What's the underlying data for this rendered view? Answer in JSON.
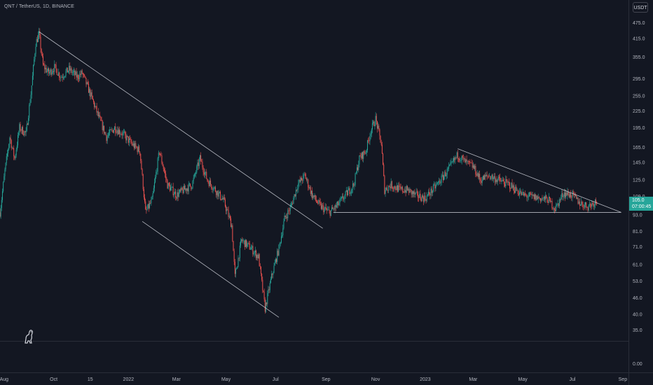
{
  "header": {
    "symbol_title": "QNT / TetherUS, 1D, BINANCE"
  },
  "currency_badge": "USDT",
  "last_price": {
    "value": "105.0",
    "countdown": "07:00:45"
  },
  "colors": {
    "background": "#131722",
    "up_candle": "#26a69a",
    "down_candle": "#ef5350",
    "trendline": "#d1d4dc",
    "axis_text": "#b2b5be",
    "grid": "#2a2e39"
  },
  "logo_icon": "tradingview-dinosaur-icon",
  "chart_data": {
    "type": "candlestick",
    "title": "QNT / TetherUS, 1D, BINANCE",
    "y_scale": "log",
    "x_range": [
      "2021-07-27",
      "2023-09-08"
    ],
    "ylim": [
      35.0,
      475.0
    ],
    "x_tick_labels": [
      {
        "label": "Aug",
        "date": "2021-08-01"
      },
      {
        "label": "Oct",
        "date": "2021-10-01"
      },
      {
        "label": "15",
        "date": "2021-11-15"
      },
      {
        "label": "2022",
        "date": "2022-01-01"
      },
      {
        "label": "Mar",
        "date": "2022-03-01"
      },
      {
        "label": "May",
        "date": "2022-05-01"
      },
      {
        "label": "Jul",
        "date": "2022-07-01"
      },
      {
        "label": "Sep",
        "date": "2022-09-01"
      },
      {
        "label": "Nov",
        "date": "2022-11-01"
      },
      {
        "label": "2023",
        "date": "2023-01-01"
      },
      {
        "label": "Mar",
        "date": "2023-03-01"
      },
      {
        "label": "May",
        "date": "2023-05-01"
      },
      {
        "label": "Jul",
        "date": "2023-07-01"
      },
      {
        "label": "Sep",
        "date": "2023-09-01"
      }
    ],
    "y_tick_labels": [
      "475.0",
      "415.0",
      "355.0",
      "295.0",
      "255.0",
      "225.0",
      "195.0",
      "165.0",
      "145.0",
      "125.0",
      "109.0",
      "93.0",
      "81.0",
      "71.0",
      "61.0",
      "53.0",
      "46.0",
      "40.0",
      "35.0"
    ],
    "secondary_pane_y_tick_labels": [
      "0.00"
    ],
    "price_path": [
      [
        "2021-07-27",
        95
      ],
      [
        "2021-08-02",
        135
      ],
      [
        "2021-08-08",
        180
      ],
      [
        "2021-08-14",
        150
      ],
      [
        "2021-08-20",
        195
      ],
      [
        "2021-08-28",
        185
      ],
      [
        "2021-09-03",
        260
      ],
      [
        "2021-09-09",
        400
      ],
      [
        "2021-09-13",
        430
      ],
      [
        "2021-09-18",
        330
      ],
      [
        "2021-09-25",
        310
      ],
      [
        "2021-10-02",
        325
      ],
      [
        "2021-10-10",
        300
      ],
      [
        "2021-10-20",
        320
      ],
      [
        "2021-10-30",
        300
      ],
      [
        "2021-11-05",
        310
      ],
      [
        "2021-11-15",
        260
      ],
      [
        "2021-11-25",
        215
      ],
      [
        "2021-12-05",
        180
      ],
      [
        "2021-12-15",
        195
      ],
      [
        "2021-12-25",
        185
      ],
      [
        "2022-01-05",
        170
      ],
      [
        "2022-01-15",
        160
      ],
      [
        "2022-01-22",
        95
      ],
      [
        "2022-01-30",
        105
      ],
      [
        "2022-02-08",
        160
      ],
      [
        "2022-02-18",
        120
      ],
      [
        "2022-03-01",
        110
      ],
      [
        "2022-03-10",
        115
      ],
      [
        "2022-03-20",
        120
      ],
      [
        "2022-03-30",
        150
      ],
      [
        "2022-04-08",
        125
      ],
      [
        "2022-04-18",
        115
      ],
      [
        "2022-04-28",
        105
      ],
      [
        "2022-05-08",
        85
      ],
      [
        "2022-05-12",
        55
      ],
      [
        "2022-05-20",
        75
      ],
      [
        "2022-06-01",
        70
      ],
      [
        "2022-06-10",
        65
      ],
      [
        "2022-06-18",
        42
      ],
      [
        "2022-06-26",
        55
      ],
      [
        "2022-07-05",
        70
      ],
      [
        "2022-07-12",
        90
      ],
      [
        "2022-07-20",
        100
      ],
      [
        "2022-07-28",
        120
      ],
      [
        "2022-08-06",
        130
      ],
      [
        "2022-08-15",
        110
      ],
      [
        "2022-08-25",
        100
      ],
      [
        "2022-09-05",
        95
      ],
      [
        "2022-09-14",
        100
      ],
      [
        "2022-09-25",
        110
      ],
      [
        "2022-10-05",
        120
      ],
      [
        "2022-10-12",
        150
      ],
      [
        "2022-10-20",
        160
      ],
      [
        "2022-10-26",
        190
      ],
      [
        "2022-11-01",
        210
      ],
      [
        "2022-11-08",
        170
      ],
      [
        "2022-11-12",
        115
      ],
      [
        "2022-11-20",
        120
      ],
      [
        "2022-12-01",
        115
      ],
      [
        "2022-12-10",
        115
      ],
      [
        "2022-12-20",
        110
      ],
      [
        "2023-01-01",
        107
      ],
      [
        "2023-01-10",
        115
      ],
      [
        "2023-01-20",
        125
      ],
      [
        "2023-02-01",
        140
      ],
      [
        "2023-02-10",
        155
      ],
      [
        "2023-02-20",
        145
      ],
      [
        "2023-03-01",
        140
      ],
      [
        "2023-03-10",
        125
      ],
      [
        "2023-03-20",
        130
      ],
      [
        "2023-04-01",
        125
      ],
      [
        "2023-04-15",
        120
      ],
      [
        "2023-05-01",
        110
      ],
      [
        "2023-05-15",
        108
      ],
      [
        "2023-06-01",
        106
      ],
      [
        "2023-06-10",
        98
      ],
      [
        "2023-06-20",
        112
      ],
      [
        "2023-07-01",
        110
      ],
      [
        "2023-07-10",
        103
      ],
      [
        "2023-07-20",
        100
      ],
      [
        "2023-07-31",
        105
      ]
    ],
    "trendlines": [
      {
        "name": "",
        "from": {
          "date": "2021-09-13",
          "price": 440
        },
        "to": {
          "date": "2022-08-28",
          "price": 83
        }
      },
      {
        "name": "",
        "from": {
          "date": "2022-01-18",
          "price": 88
        },
        "to": {
          "date": "2022-07-05",
          "price": 39
        }
      },
      {
        "name": "",
        "from": {
          "date": "2022-09-10",
          "price": 95
        },
        "to": {
          "date": "2023-08-30",
          "price": 95
        }
      },
      {
        "name": "",
        "from": {
          "date": "2023-02-10",
          "price": 163
        },
        "to": {
          "date": "2023-08-30",
          "price": 95
        }
      }
    ]
  }
}
